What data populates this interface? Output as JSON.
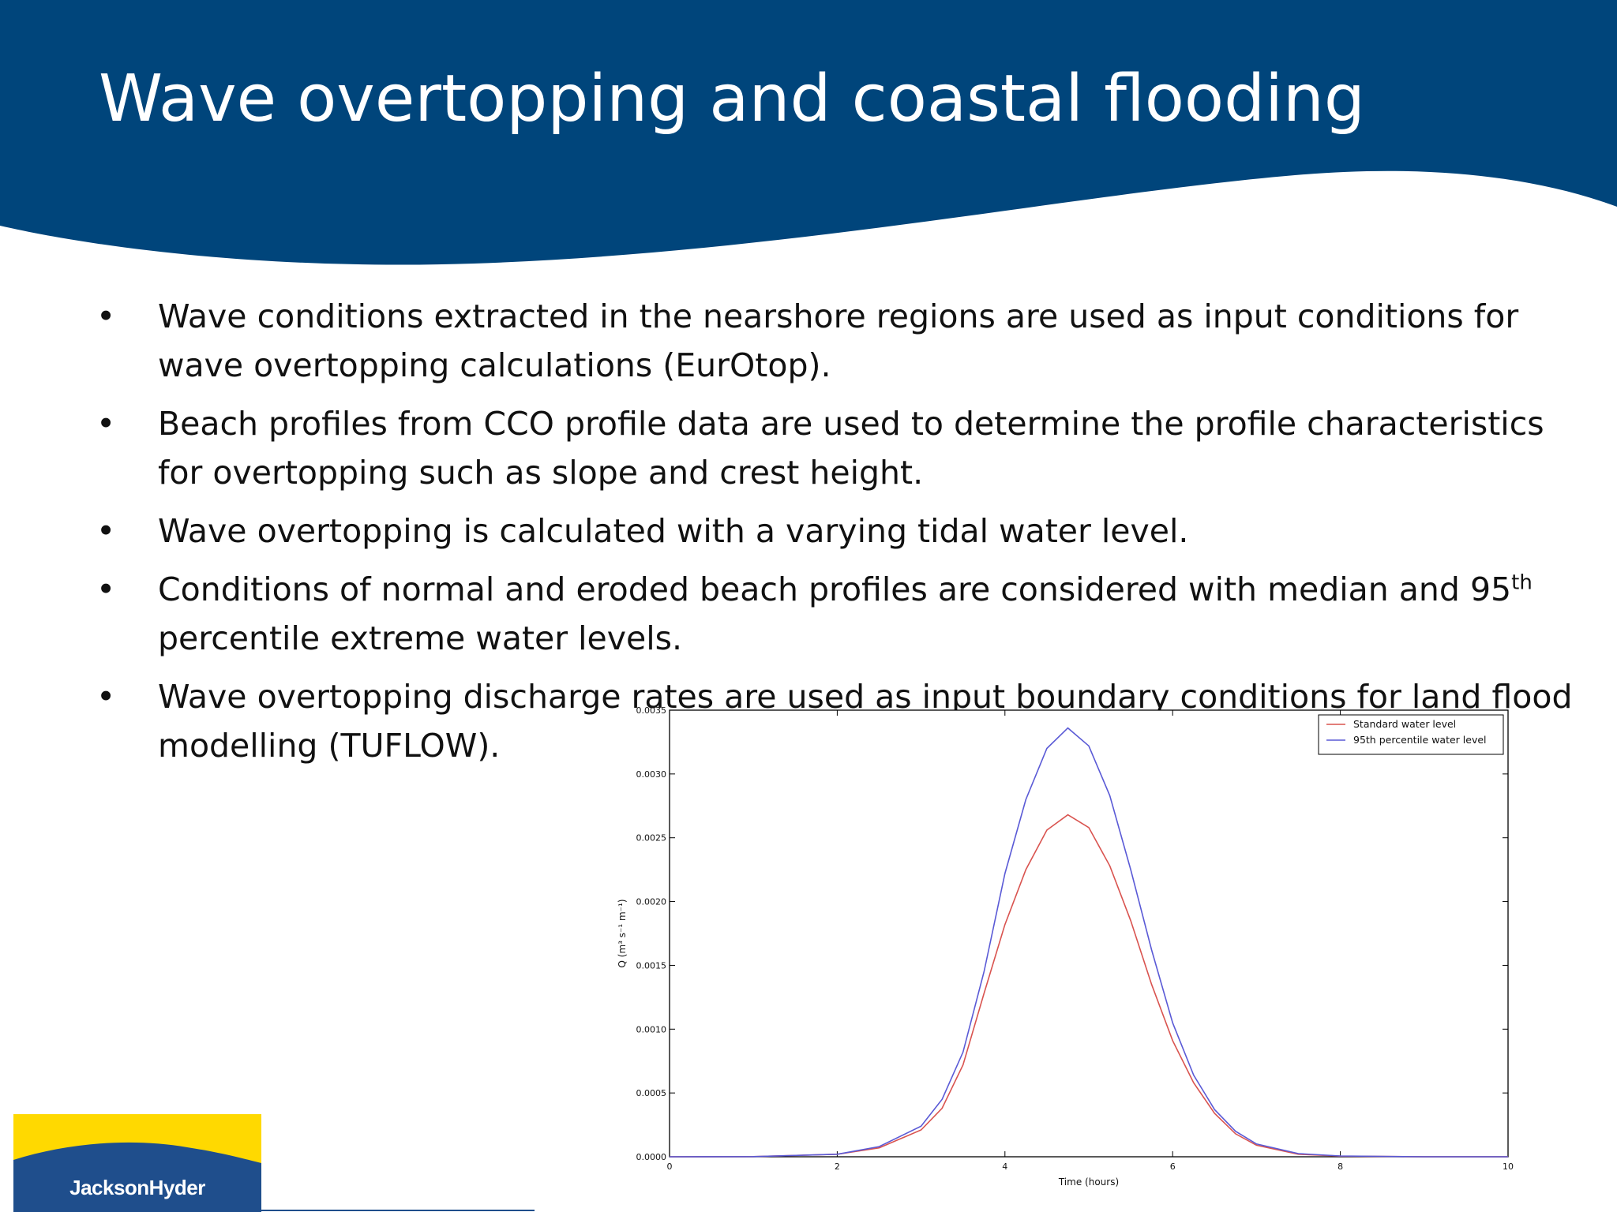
{
  "slide": {
    "title": "Wave overtopping and coastal flooding",
    "bullets": [
      {
        "text": "Wave conditions extracted in the nearshore regions are used as input conditions for wave overtopping calculations (EurOtop)."
      },
      {
        "text": "Beach profiles from CCO profile data are used to determine the profile characteristics for overtopping such as slope and crest height."
      },
      {
        "text": "Wave overtopping is calculated with a varying tidal water level."
      },
      {
        "before": "Conditions of normal and eroded beach profiles are considered with median and 95",
        "sup": "th",
        "after": " percentile extreme water levels."
      },
      {
        "text": "Wave overtopping discharge rates are used as input boundary conditions for land flood modelling (TUFLOW)."
      }
    ],
    "bullet_symbol": "•",
    "logo_text": "JacksonHyder",
    "colors": {
      "header": "#00457b",
      "logo_yellow": "#ffd900",
      "logo_blue": "#1f4e8c",
      "standard_series": "#d9534f",
      "percentile_series": "#5a5ad6"
    }
  },
  "chart_data": {
    "type": "line",
    "xlabel": "Time (hours)",
    "ylabel": "Q (m³ s⁻¹ m⁻¹)",
    "xlim": [
      0,
      10
    ],
    "ylim": [
      0,
      0.0035
    ],
    "x_ticks": [
      0,
      2,
      4,
      6,
      8,
      10
    ],
    "y_ticks": [
      0.0,
      0.0005,
      0.001,
      0.0015,
      0.002,
      0.0025,
      0.003,
      0.0035
    ],
    "y_tick_labels": [
      "0.0000",
      "0.0005",
      "0.0010",
      "0.0015",
      "0.0020",
      "0.0025",
      "0.0030",
      "0.0035"
    ],
    "legend_position": "top-right",
    "grid": false,
    "x": [
      0,
      1,
      2,
      2.5,
      3,
      3.25,
      3.5,
      3.75,
      4,
      4.25,
      4.5,
      4.75,
      5,
      5.25,
      5.5,
      5.75,
      6,
      6.25,
      6.5,
      6.75,
      7,
      7.5,
      8,
      9,
      10
    ],
    "series": [
      {
        "name": "Standard water level",
        "color": "#d9534f",
        "values": [
          0,
          1e-06,
          2e-05,
          7e-05,
          0.00021,
          0.00038,
          0.00072,
          0.00128,
          0.00182,
          0.00225,
          0.00256,
          0.00268,
          0.00258,
          0.00228,
          0.00185,
          0.00135,
          0.00091,
          0.00058,
          0.00034,
          0.00018,
          9e-05,
          2e-05,
          5e-06,
          0,
          0
        ]
      },
      {
        "name": "95th percentile water level",
        "color": "#5a5ad6",
        "values": [
          0,
          1e-06,
          2e-05,
          8e-05,
          0.00024,
          0.00045,
          0.00082,
          0.00145,
          0.00222,
          0.0028,
          0.0032,
          0.00336,
          0.00322,
          0.00283,
          0.00225,
          0.00162,
          0.00105,
          0.00064,
          0.00037,
          0.0002,
          0.0001,
          2.5e-05,
          6e-06,
          0,
          0
        ]
      }
    ]
  }
}
